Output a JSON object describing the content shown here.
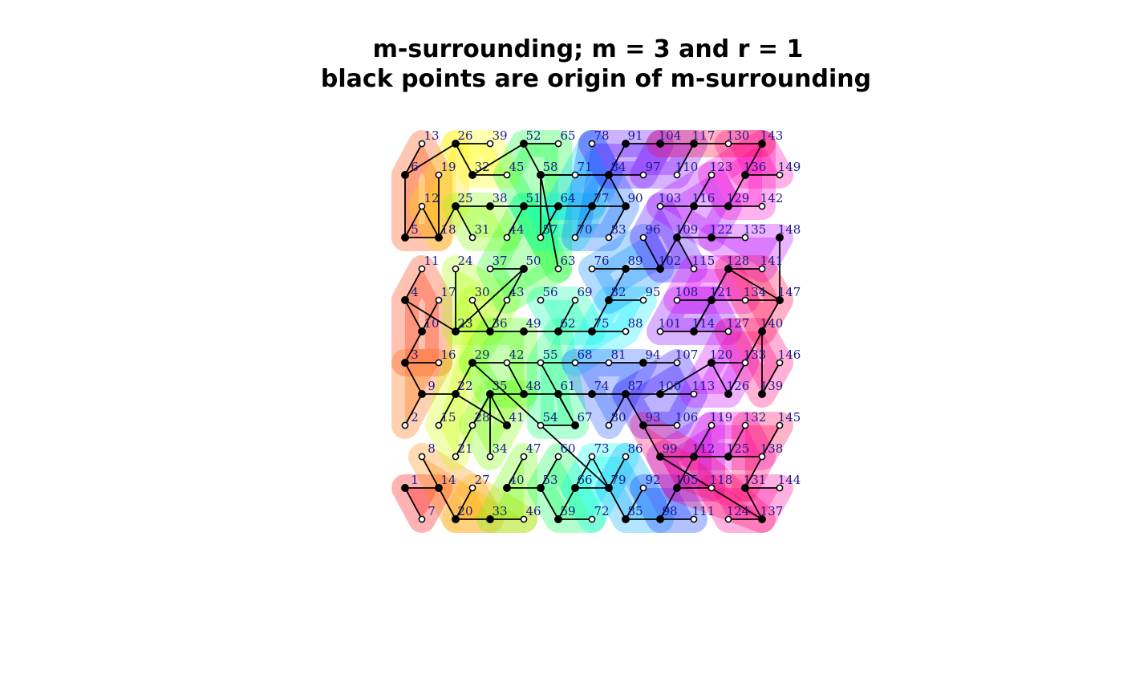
{
  "chart_data": {
    "type": "scatter",
    "title": [
      "m-surrounding; m =  3 and r =  1",
      "black points are origin of m-surrounding"
    ],
    "xlabel": "",
    "ylabel": "",
    "grid": false,
    "legend": "none",
    "xlim": [
      1,
      12
    ],
    "ylim": [
      1,
      13
    ],
    "axes_visible": false,
    "origin_points": [
      1,
      3,
      4,
      5,
      6,
      9,
      10,
      14,
      18,
      20,
      22,
      23,
      25,
      26,
      29,
      32,
      33,
      35,
      36,
      38,
      40,
      41,
      48,
      49,
      50,
      51,
      52,
      53,
      58,
      59,
      61,
      62,
      64,
      66,
      67,
      74,
      75,
      77,
      79,
      82,
      84,
      85,
      87,
      89,
      90,
      91,
      93,
      94,
      98,
      99,
      100,
      102,
      104,
      105,
      109,
      112,
      114,
      116,
      117,
      120,
      121,
      122,
      125,
      126,
      128,
      129,
      131,
      136,
      137,
      139,
      140,
      143,
      147,
      148
    ],
    "edges": [
      [
        1,
        7
      ],
      [
        1,
        14
      ],
      [
        8,
        14
      ],
      [
        14,
        20
      ],
      [
        20,
        27
      ],
      [
        20,
        33
      ],
      [
        33,
        46
      ],
      [
        2,
        9
      ],
      [
        9,
        22
      ],
      [
        9,
        3
      ],
      [
        3,
        16
      ],
      [
        3,
        10
      ],
      [
        10,
        4
      ],
      [
        4,
        23
      ],
      [
        10,
        17
      ],
      [
        4,
        11
      ],
      [
        22,
        15
      ],
      [
        22,
        29
      ],
      [
        22,
        41
      ],
      [
        5,
        6
      ],
      [
        5,
        18
      ],
      [
        5,
        12
      ],
      [
        6,
        13
      ],
      [
        6,
        26
      ],
      [
        18,
        25
      ],
      [
        18,
        19
      ],
      [
        25,
        38
      ],
      [
        26,
        39
      ],
      [
        26,
        32
      ],
      [
        32,
        45
      ],
      [
        18,
        12
      ],
      [
        23,
        36
      ],
      [
        36,
        49
      ],
      [
        36,
        43
      ],
      [
        36,
        30
      ],
      [
        23,
        50
      ],
      [
        23,
        24
      ],
      [
        49,
        62
      ],
      [
        62,
        75
      ],
      [
        75,
        88
      ],
      [
        62,
        69
      ],
      [
        29,
        42
      ],
      [
        42,
        55
      ],
      [
        55,
        68
      ],
      [
        68,
        81
      ],
      [
        81,
        94
      ],
      [
        94,
        107
      ],
      [
        42,
        48
      ],
      [
        29,
        79
      ],
      [
        55,
        67
      ],
      [
        35,
        48
      ],
      [
        35,
        28
      ],
      [
        35,
        34
      ],
      [
        35,
        41
      ],
      [
        35,
        21
      ],
      [
        48,
        61
      ],
      [
        61,
        74
      ],
      [
        61,
        67
      ],
      [
        67,
        54
      ],
      [
        25,
        31
      ],
      [
        38,
        51
      ],
      [
        51,
        64
      ],
      [
        64,
        77
      ],
      [
        77,
        90
      ],
      [
        90,
        83
      ],
      [
        77,
        70
      ],
      [
        51,
        44
      ],
      [
        64,
        57
      ],
      [
        50,
        37
      ],
      [
        50,
        43
      ],
      [
        52,
        65
      ],
      [
        52,
        58
      ],
      [
        52,
        32
      ],
      [
        58,
        63
      ],
      [
        58,
        57
      ],
      [
        58,
        71
      ],
      [
        58,
        84
      ],
      [
        84,
        91
      ],
      [
        91,
        104
      ],
      [
        84,
        90
      ],
      [
        84,
        77
      ],
      [
        84,
        97
      ],
      [
        71,
        84
      ],
      [
        40,
        47
      ],
      [
        40,
        53
      ],
      [
        53,
        60
      ],
      [
        53,
        59
      ],
      [
        59,
        72
      ],
      [
        59,
        66
      ],
      [
        66,
        79
      ],
      [
        79,
        73
      ],
      [
        79,
        85
      ],
      [
        85,
        92
      ],
      [
        85,
        98
      ],
      [
        98,
        111
      ],
      [
        98,
        105
      ],
      [
        66,
        73
      ],
      [
        79,
        86
      ],
      [
        74,
        87
      ],
      [
        87,
        100
      ],
      [
        87,
        80
      ],
      [
        87,
        93
      ],
      [
        93,
        99
      ],
      [
        99,
        112
      ],
      [
        112,
        125
      ],
      [
        125,
        138
      ],
      [
        138,
        145
      ],
      [
        125,
        132
      ],
      [
        112,
        119
      ],
      [
        93,
        106
      ],
      [
        100,
        113
      ],
      [
        100,
        120
      ],
      [
        82,
        89
      ],
      [
        82,
        95
      ],
      [
        82,
        75
      ],
      [
        89,
        102
      ],
      [
        89,
        76
      ],
      [
        102,
        96
      ],
      [
        102,
        109
      ],
      [
        109,
        122
      ],
      [
        109,
        116
      ],
      [
        116,
        129
      ],
      [
        129,
        142
      ],
      [
        116,
        103
      ],
      [
        116,
        123
      ],
      [
        122,
        135
      ],
      [
        109,
        115
      ],
      [
        114,
        121
      ],
      [
        121,
        108
      ],
      [
        121,
        128
      ],
      [
        121,
        134
      ],
      [
        128,
        141
      ],
      [
        128,
        147
      ],
      [
        147,
        148
      ],
      [
        147,
        134
      ],
      [
        114,
        101
      ],
      [
        114,
        127
      ],
      [
        114,
        128
      ],
      [
        117,
        130
      ],
      [
        130,
        143
      ],
      [
        143,
        136
      ],
      [
        136,
        149
      ],
      [
        136,
        129
      ],
      [
        104,
        117
      ],
      [
        117,
        110
      ],
      [
        120,
        133
      ],
      [
        120,
        126
      ],
      [
        126,
        140
      ],
      [
        140,
        147
      ],
      [
        140,
        139
      ],
      [
        139,
        146
      ],
      [
        133,
        126
      ],
      [
        131,
        144
      ],
      [
        131,
        137
      ],
      [
        131,
        138
      ],
      [
        105,
        118
      ],
      [
        105,
        112
      ],
      [
        124,
        137
      ],
      [
        137,
        99
      ]
    ],
    "regions": [
      {
        "color": "#ff0000",
        "points": [
          1,
          7,
          14
        ]
      },
      {
        "color": "#ff3300",
        "points": [
          3,
          4,
          10,
          16,
          17,
          11
        ]
      },
      {
        "color": "#ff4400",
        "points": [
          5,
          6,
          13,
          12,
          18,
          19
        ]
      },
      {
        "color": "#ff6600",
        "points": [
          2,
          9,
          3,
          16
        ]
      },
      {
        "color": "#ff8800",
        "points": [
          8,
          14,
          20,
          27,
          33
        ]
      },
      {
        "color": "#ffbb00",
        "points": [
          20,
          27,
          33,
          46
        ]
      },
      {
        "color": "#ffdd00",
        "points": [
          18,
          25,
          12,
          19,
          26
        ]
      },
      {
        "color": "#ffff00",
        "points": [
          26,
          32,
          39,
          45
        ]
      },
      {
        "color": "#ccff00",
        "points": [
          22,
          15,
          21,
          29,
          30
        ]
      },
      {
        "color": "#aaff00",
        "points": [
          23,
          30,
          36,
          43,
          24
        ]
      },
      {
        "color": "#88ff00",
        "points": [
          25,
          31,
          38,
          44
        ]
      },
      {
        "color": "#77ff00",
        "points": [
          35,
          28,
          34,
          41,
          48
        ]
      },
      {
        "color": "#66ff00",
        "points": [
          33,
          40,
          47,
          46
        ]
      },
      {
        "color": "#44ff00",
        "points": [
          29,
          42,
          35,
          48,
          36,
          49
        ]
      },
      {
        "color": "#22ff22",
        "points": [
          50,
          37,
          43,
          63,
          51
        ]
      },
      {
        "color": "#00ff33",
        "points": [
          52,
          58,
          65,
          45,
          57,
          63
        ]
      },
      {
        "color": "#00ff55",
        "points": [
          53,
          59,
          60,
          66,
          72
        ]
      },
      {
        "color": "#00ff77",
        "points": [
          61,
          67,
          54,
          55,
          62
        ]
      },
      {
        "color": "#00ffaa",
        "points": [
          62,
          69,
          75,
          56
        ]
      },
      {
        "color": "#00ffcc",
        "points": [
          64,
          51,
          57,
          70,
          77
        ]
      },
      {
        "color": "#00ffee",
        "points": [
          66,
          73,
          79,
          86,
          72
        ]
      },
      {
        "color": "#00eeff",
        "points": [
          75,
          82,
          88,
          95,
          68
        ]
      },
      {
        "color": "#00ccff",
        "points": [
          71,
          84,
          64,
          77,
          78
        ]
      },
      {
        "color": "#00aaff",
        "points": [
          85,
          92,
          98,
          79,
          86
        ]
      },
      {
        "color": "#0088ff",
        "points": [
          89,
          76,
          82,
          102,
          96
        ]
      },
      {
        "color": "#0066ff",
        "points": [
          77,
          90,
          83,
          70,
          78,
          84
        ]
      },
      {
        "color": "#2255ff",
        "points": [
          74,
          87,
          80,
          81,
          68,
          94
        ]
      },
      {
        "color": "#0033ff",
        "points": [
          98,
          105,
          111,
          92
        ]
      },
      {
        "color": "#2200ff",
        "points": [
          93,
          100,
          106,
          87,
          107,
          113
        ]
      },
      {
        "color": "#4400ff",
        "points": [
          102,
          109,
          96,
          103,
          115
        ]
      },
      {
        "color": "#5500ff",
        "points": [
          84,
          91,
          97,
          104,
          78
        ]
      },
      {
        "color": "#7700ff",
        "points": [
          104,
          110,
          117,
          97
        ]
      },
      {
        "color": "#8800ff",
        "points": [
          101,
          108,
          114,
          121,
          127
        ]
      },
      {
        "color": "#9900ff",
        "points": [
          105,
          112,
          118,
          119,
          99
        ]
      },
      {
        "color": "#aa00ff",
        "points": [
          116,
          122,
          123,
          129,
          103
        ]
      },
      {
        "color": "#bb00ff",
        "points": [
          135,
          148,
          141,
          122
        ]
      },
      {
        "color": "#cc00ff",
        "points": [
          120,
          126,
          133,
          113,
          127
        ]
      },
      {
        "color": "#dd00ee",
        "points": [
          121,
          128,
          134,
          115,
          108
        ]
      },
      {
        "color": "#ee00dd",
        "points": [
          125,
          132,
          138,
          119,
          112
        ]
      },
      {
        "color": "#ff00cc",
        "points": [
          129,
          136,
          142,
          143,
          123
        ]
      },
      {
        "color": "#ff00aa",
        "points": [
          136,
          149,
          143,
          130
        ]
      },
      {
        "color": "#ff0099",
        "points": [
          131,
          137,
          144,
          124,
          118
        ]
      },
      {
        "color": "#ff0077",
        "points": [
          140,
          146,
          139,
          133,
          127
        ]
      },
      {
        "color": "#ff0066",
        "points": [
          99,
          112,
          105,
          137,
          93
        ]
      },
      {
        "color": "#ff0055",
        "points": [
          145,
          138,
          131,
          132
        ]
      },
      {
        "color": "#ff0044",
        "points": [
          147,
          134,
          140,
          141,
          128
        ]
      },
      {
        "color": "#ff0033",
        "points": [
          117,
          130,
          143,
          104
        ]
      }
    ]
  }
}
